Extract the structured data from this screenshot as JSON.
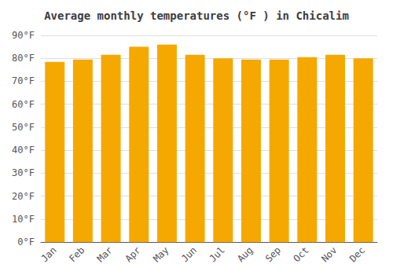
{
  "chart_data": {
    "type": "bar",
    "title": "Average monthly temperatures (°F ) in Chicalim",
    "categories": [
      "Jan",
      "Feb",
      "Mar",
      "Apr",
      "May",
      "Jun",
      "Jul",
      "Aug",
      "Sep",
      "Oct",
      "Nov",
      "Dec"
    ],
    "values": [
      78.5,
      79.5,
      81.5,
      85.0,
      86.0,
      81.5,
      80.0,
      79.5,
      79.5,
      80.5,
      81.5,
      80.0
    ],
    "color": "#F5A800",
    "ylim": [
      0,
      90
    ],
    "yticks": [
      {
        "value": 0,
        "label": "0°F"
      },
      {
        "value": 10,
        "label": "10°F"
      },
      {
        "value": 20,
        "label": "20°F"
      },
      {
        "value": 30,
        "label": "30°F"
      },
      {
        "value": 40,
        "label": "40°F"
      },
      {
        "value": 50,
        "label": "50°F"
      },
      {
        "value": 60,
        "label": "60°F"
      },
      {
        "value": 70,
        "label": "70°F"
      },
      {
        "value": 80,
        "label": "80°F"
      },
      {
        "value": 90,
        "label": "90°F"
      }
    ],
    "grid": true
  }
}
